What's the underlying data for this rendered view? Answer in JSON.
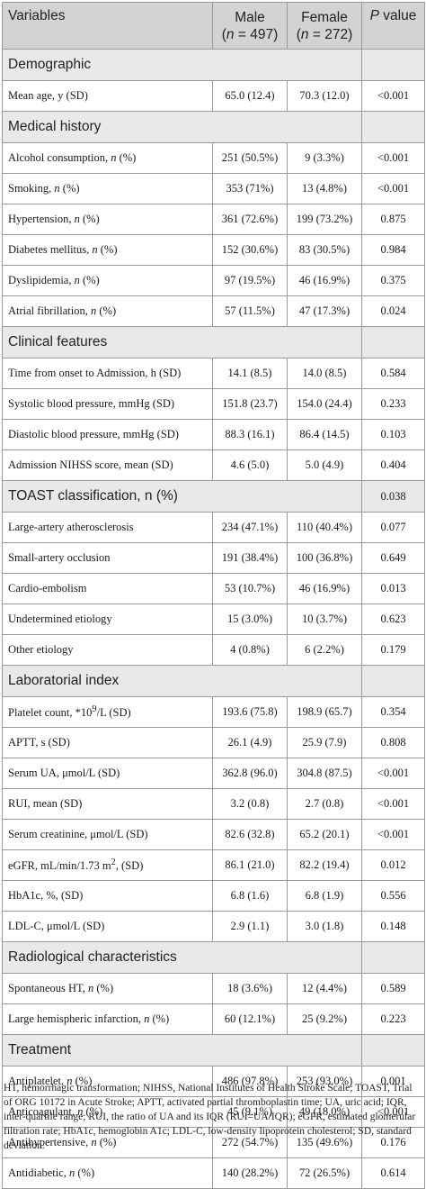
{
  "header": {
    "variables": "Variables",
    "male_line1": "Male",
    "male_line2_pre": "(",
    "male_line2_n": "n",
    "male_line2_post": " = 497)",
    "female_line1": "Female",
    "female_line2_pre": "(",
    "female_line2_n": "n",
    "female_line2_post": " = 272)",
    "p_italic": "P",
    "p_rest": " value"
  },
  "sections": [
    {
      "title": "Demographic",
      "p": "",
      "rows": [
        {
          "pre": "Mean age, y (SD)",
          "it": "",
          "post": "",
          "sup": "",
          "post2": "",
          "male": "65.0 (12.4)",
          "female": "70.3 (12.0)",
          "p": "<0.001"
        }
      ]
    },
    {
      "title": "Medical history",
      "p": "",
      "rows": [
        {
          "pre": "Alcohol consumption, ",
          "it": "n",
          "post": " (%)",
          "sup": "",
          "post2": "",
          "male": "251 (50.5%)",
          "female": "9 (3.3%)",
          "p": "<0.001"
        },
        {
          "pre": "Smoking, ",
          "it": "n",
          "post": " (%)",
          "sup": "",
          "post2": "",
          "male": "353 (71%)",
          "female": "13 (4.8%)",
          "p": "<0.001"
        },
        {
          "pre": "Hypertension, ",
          "it": "n",
          "post": " (%)",
          "sup": "",
          "post2": "",
          "male": "361 (72.6%)",
          "female": "199 (73.2%)",
          "p": "0.875"
        },
        {
          "pre": "Diabetes mellitus, ",
          "it": "n",
          "post": " (%)",
          "sup": "",
          "post2": "",
          "male": "152 (30.6%)",
          "female": "83 (30.5%)",
          "p": "0.984"
        },
        {
          "pre": "Dyslipidemia, ",
          "it": "n",
          "post": " (%)",
          "sup": "",
          "post2": "",
          "male": "97 (19.5%)",
          "female": "46 (16.9%)",
          "p": "0.375"
        },
        {
          "pre": "Atrial fibrillation, ",
          "it": "n",
          "post": " (%)",
          "sup": "",
          "post2": "",
          "male": "57 (11.5%)",
          "female": "47 (17.3%)",
          "p": "0.024"
        }
      ]
    },
    {
      "title": "Clinical features",
      "p": "",
      "rows": [
        {
          "pre": "Time from onset to Admission, h (SD)",
          "it": "",
          "post": "",
          "sup": "",
          "post2": "",
          "male": "14.1 (8.5)",
          "female": "14.0 (8.5)",
          "p": "0.584"
        },
        {
          "pre": "Systolic blood pressure, mmHg (SD)",
          "it": "",
          "post": "",
          "sup": "",
          "post2": "",
          "male": "151.8 (23.7)",
          "female": "154.0 (24.4)",
          "p": "0.233"
        },
        {
          "pre": "Diastolic blood pressure, mmHg (SD)",
          "it": "",
          "post": "",
          "sup": "",
          "post2": "",
          "male": "88.3 (16.1)",
          "female": "86.4 (14.5)",
          "p": "0.103"
        },
        {
          "pre": "Admission NIHSS score, mean (SD)",
          "it": "",
          "post": "",
          "sup": "",
          "post2": "",
          "male": "4.6 (5.0)",
          "female": "5.0 (4.9)",
          "p": "0.404"
        }
      ]
    },
    {
      "title": "TOAST classification, n (%)",
      "p": "0.038",
      "rows": [
        {
          "pre": "Large-artery atherosclerosis",
          "it": "",
          "post": "",
          "sup": "",
          "post2": "",
          "male": "234 (47.1%)",
          "female": "110 (40.4%)",
          "p": "0.077"
        },
        {
          "pre": "Small-artery occlusion",
          "it": "",
          "post": "",
          "sup": "",
          "post2": "",
          "male": "191 (38.4%)",
          "female": "100 (36.8%)",
          "p": "0.649"
        },
        {
          "pre": "Cardio-embolism",
          "it": "",
          "post": "",
          "sup": "",
          "post2": "",
          "male": "53 (10.7%)",
          "female": "46 (16.9%)",
          "p": "0.013"
        },
        {
          "pre": "Undetermined etiology",
          "it": "",
          "post": "",
          "sup": "",
          "post2": "",
          "male": "15 (3.0%)",
          "female": "10 (3.7%)",
          "p": "0.623"
        },
        {
          "pre": "Other etiology",
          "it": "",
          "post": "",
          "sup": "",
          "post2": "",
          "male": "4 (0.8%)",
          "female": "6 (2.2%)",
          "p": "0.179"
        }
      ]
    },
    {
      "title": "Laboratorial index",
      "p": "",
      "rows": [
        {
          "pre": "Platelet count, *10",
          "it": "",
          "post": "",
          "sup": "9",
          "post2": "/L (SD)",
          "male": "193.6 (75.8)",
          "female": "198.9 (65.7)",
          "p": "0.354"
        },
        {
          "pre": "APTT, s (SD)",
          "it": "",
          "post": "",
          "sup": "",
          "post2": "",
          "male": "26.1 (4.9)",
          "female": "25.9 (7.9)",
          "p": "0.808"
        },
        {
          "pre": "Serum UA, μmol/L (SD)",
          "it": "",
          "post": "",
          "sup": "",
          "post2": "",
          "male": "362.8 (96.0)",
          "female": "304.8 (87.5)",
          "p": "<0.001"
        },
        {
          "pre": "RUI, mean (SD)",
          "it": "",
          "post": "",
          "sup": "",
          "post2": "",
          "male": "3.2 (0.8)",
          "female": "2.7 (0.8)",
          "p": "<0.001"
        },
        {
          "pre": "Serum creatinine, μmol/L (SD)",
          "it": "",
          "post": "",
          "sup": "",
          "post2": "",
          "male": "82.6 (32.8)",
          "female": "65.2 (20.1)",
          "p": "<0.001"
        },
        {
          "pre": "eGFR, mL/min/1.73 m",
          "it": "",
          "post": "",
          "sup": "2",
          "post2": ", (SD)",
          "male": "86.1 (21.0)",
          "female": "82.2 (19.4)",
          "p": "0.012"
        },
        {
          "pre": "HbA1c, %, (SD)",
          "it": "",
          "post": "",
          "sup": "",
          "post2": "",
          "male": "6.8 (1.6)",
          "female": "6.8 (1.9)",
          "p": "0.556"
        },
        {
          "pre": "LDL-C, μmol/L (SD)",
          "it": "",
          "post": "",
          "sup": "",
          "post2": "",
          "male": "2.9 (1.1)",
          "female": "3.0 (1.8)",
          "p": "0.148"
        }
      ]
    },
    {
      "title": "Radiological characteristics",
      "p": "",
      "rows": [
        {
          "pre": "Spontaneous HT, ",
          "it": "n",
          "post": " (%)",
          "sup": "",
          "post2": "",
          "male": "18 (3.6%)",
          "female": "12 (4.4%)",
          "p": "0.589"
        },
        {
          "pre": "Large hemispheric infarction, ",
          "it": "n",
          "post": " (%)",
          "sup": "",
          "post2": "",
          "male": "60 (12.1%)",
          "female": "25 (9.2%)",
          "p": "0.223"
        }
      ]
    },
    {
      "title": "Treatment",
      "p": "",
      "rows": [
        {
          "pre": "Antiplatelet, ",
          "it": "n",
          "post": " (%)",
          "sup": "",
          "post2": "",
          "male": "486 (97.8%)",
          "female": "253 (93.0%)",
          "p": "0.001"
        },
        {
          "pre": "Anticoagulant, ",
          "it": "n",
          "post": " (%)",
          "sup": "",
          "post2": "",
          "male": "45 (9.1%)",
          "female": "49 (18.0%)",
          "p": "<0.001"
        },
        {
          "pre": "Antihypertensive, ",
          "it": "n",
          "post": " (%)",
          "sup": "",
          "post2": "",
          "male": "272 (54.7%)",
          "female": "135 (49.6%)",
          "p": "0.176"
        },
        {
          "pre": "Antidiabetic, ",
          "it": "n",
          "post": " (%)",
          "sup": "",
          "post2": "",
          "male": "140 (28.2%)",
          "female": "72 (26.5%)",
          "p": "0.614"
        }
      ]
    }
  ],
  "footnote": "HT, hemorrhagic transformation; NIHSS, National Institutes of Health Stroke Scale; TOAST, Trial of ORG 10172 in Acute Stroke; APTT, activated partial thromboplastin time; UA, uric acid; IQR, inter-quartile range; RUI, the ratio of UA and its IQR (RUI=UA/IQR); eGFR, estimated glomerular filtration rate; HbA1c, hemoglobin A1c; LDL-C, low-density lipoprotein cholesterol; SD, standard deviation."
}
